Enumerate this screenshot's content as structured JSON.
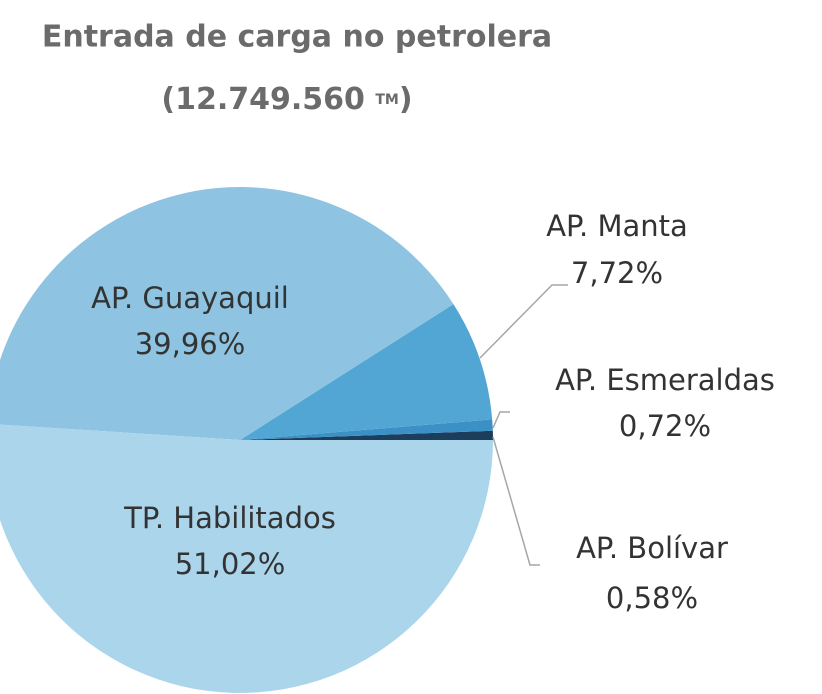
{
  "chart_data": {
    "type": "pie",
    "title": "Entrada de carga no petrolera",
    "subtitle_parts": [
      "(12.749.560 ",
      "TM",
      ")"
    ],
    "categories": [
      "AP. Bolívar",
      "AP. Esmeraldas",
      "AP. Manta",
      "AP. Guayaquil",
      "TP. Habilitados"
    ],
    "values": [
      0.58,
      0.72,
      7.72,
      39.96,
      51.02
    ],
    "value_labels": [
      "0,58%",
      "0,72%",
      "7,72%",
      "39,96%",
      "51,02%"
    ],
    "colors": [
      "#1d3d5c",
      "#3b90c6",
      "#52a6d3",
      "#8ec4e1",
      "#abd5eb"
    ]
  }
}
